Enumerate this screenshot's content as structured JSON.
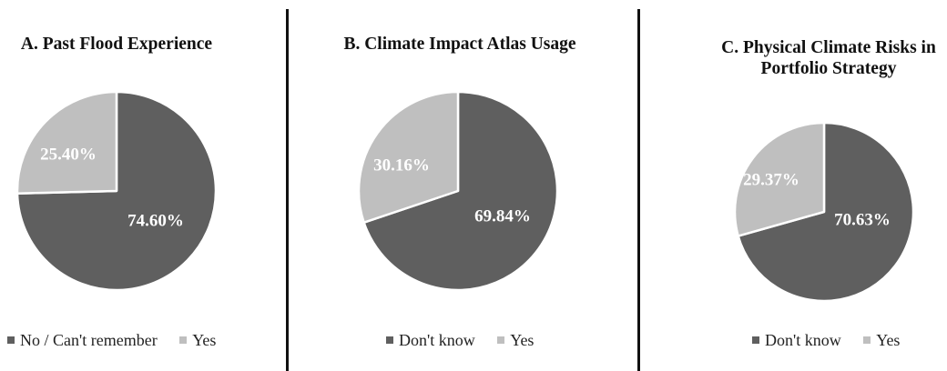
{
  "colors": {
    "dark": "#5f5f5f",
    "light": "#bfbfbf"
  },
  "chart_data": [
    {
      "type": "pie",
      "title": "A. Past Flood Experience",
      "slices": [
        {
          "label": "No / Can't remember",
          "value": 74.6,
          "display": "74.60%",
          "color": "#5f5f5f"
        },
        {
          "label": "Yes",
          "value": 25.4,
          "display": "25.40%",
          "color": "#bfbfbf"
        }
      ],
      "legend": [
        "No / Can't remember",
        "Yes"
      ]
    },
    {
      "type": "pie",
      "title": "B. Climate Impact Atlas Usage",
      "slices": [
        {
          "label": "Don't know",
          "value": 69.84,
          "display": "69.84%",
          "color": "#5f5f5f"
        },
        {
          "label": "Yes",
          "value": 30.16,
          "display": "30.16%",
          "color": "#bfbfbf"
        }
      ],
      "legend": [
        "Don't know",
        "Yes"
      ]
    },
    {
      "type": "pie",
      "title": "C. Physical Climate Risks in Portfolio Strategy",
      "slices": [
        {
          "label": "Don't know",
          "value": 70.63,
          "display": "70.63%",
          "color": "#5f5f5f"
        },
        {
          "label": "Yes",
          "value": 29.37,
          "display": "29.37%",
          "color": "#bfbfbf"
        }
      ],
      "legend": [
        "Don't know",
        "Yes"
      ]
    }
  ]
}
